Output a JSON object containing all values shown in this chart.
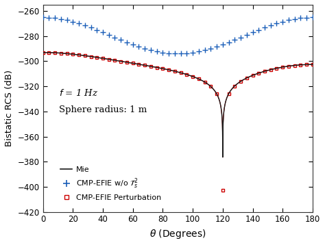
{
  "xlabel": "$\\theta$ (Degrees)",
  "ylabel": "Bistatic RCS (dB)",
  "xlim": [
    0,
    180
  ],
  "ylim": [
    -420,
    -255
  ],
  "yticks": [
    -420,
    -400,
    -380,
    -360,
    -340,
    -320,
    -300,
    -280,
    -260
  ],
  "xticks": [
    0,
    20,
    40,
    60,
    80,
    100,
    120,
    140,
    160,
    180
  ],
  "annotation_text1": "$f$ = 1 Hz",
  "annotation_text2": "Sphere radius: 1 m",
  "legend_entries": [
    "Mie",
    "CMP-EFIE w/o $\\mathcal{T}_s^2$",
    "CMP-EFIE Perturbation"
  ],
  "mie_color": "#1a1a1a",
  "blue_color": "#1a5eb8",
  "red_color": "#cc0000",
  "background_color": "#ffffff",
  "figsize": [
    4.74,
    3.58
  ],
  "dpi": 100
}
